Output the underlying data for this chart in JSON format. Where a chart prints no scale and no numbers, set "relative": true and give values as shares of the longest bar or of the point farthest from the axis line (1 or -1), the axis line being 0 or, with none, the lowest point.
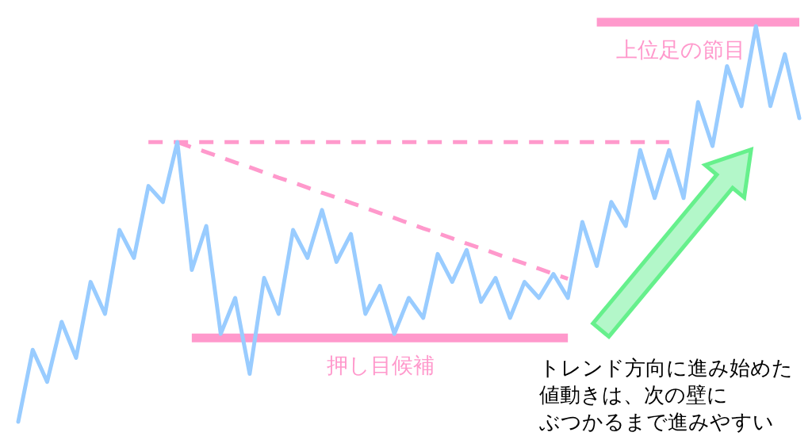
{
  "chart_data": {
    "type": "line",
    "relative": true,
    "categories": [
      null,
      null,
      null,
      null,
      null,
      null,
      null,
      null,
      null,
      null,
      null,
      null,
      null,
      null,
      null,
      null,
      null,
      null,
      null,
      null,
      null,
      null,
      null,
      null,
      null,
      null,
      null,
      null,
      null,
      null,
      null,
      null,
      null,
      null,
      null,
      null,
      null,
      null,
      null,
      null,
      null,
      null,
      null,
      null,
      null,
      null,
      null,
      null,
      null,
      null,
      null,
      null,
      null,
      null,
      null
    ],
    "series": [
      {
        "color": "#99ccff",
        "values": [
          0,
          0.18,
          0.1,
          0.25,
          0.16,
          0.35,
          0.27,
          0.48,
          0.41,
          0.59,
          0.55,
          0.7,
          0.38,
          0.49,
          0.22,
          0.31,
          0.12,
          0.36,
          0.27,
          0.48,
          0.41,
          0.53,
          0.4,
          0.47,
          0.27,
          0.34,
          0.22,
          0.31,
          0.26,
          0.42,
          0.35,
          0.43,
          0.3,
          0.36,
          0.26,
          0.35,
          0.31,
          0.37,
          0.31,
          0.5,
          0.39,
          0.55,
          0.49,
          0.68,
          0.56,
          0.68,
          0.56,
          0.8,
          0.69,
          0.89,
          0.79,
          0.99,
          0.79,
          0.92,
          0.76
        ]
      },
      {
        "type": "line",
        "color": "#ff99cc",
        "line_style": "dashed",
        "values": [
          null,
          null,
          null,
          null,
          null,
          null,
          null,
          null,
          null,
          0.7,
          0.7,
          0.7,
          0.7,
          0.7,
          0.7,
          0.7,
          0.7,
          0.7,
          0.7,
          0.7,
          0.7,
          0.7,
          0.7,
          0.7,
          0.7,
          0.7,
          0.7,
          0.7,
          0.7,
          0.7,
          0.7,
          0.7,
          0.7,
          0.7,
          0.7,
          0.7,
          0.7,
          0.7,
          0.7,
          0.7,
          0.7,
          0.7,
          0.7,
          0.7,
          0.7,
          0.7,
          null,
          null,
          null,
          null,
          null,
          null,
          null,
          null,
          null
        ]
      },
      {
        "type": "line",
        "color": "#ff99cc",
        "line_style": "dashed",
        "values": [
          null,
          null,
          null,
          null,
          null,
          null,
          null,
          null,
          null,
          null,
          null,
          0.7,
          0.687,
          0.675,
          0.662,
          0.649,
          0.637,
          0.624,
          0.611,
          0.599,
          0.586,
          0.573,
          0.561,
          0.548,
          0.535,
          0.522,
          0.51,
          0.497,
          0.484,
          0.472,
          0.459,
          0.446,
          0.434,
          0.421,
          0.408,
          0.396,
          0.383,
          0.37,
          0.358,
          null,
          null,
          null,
          null,
          null,
          null,
          null,
          null,
          null,
          null,
          null,
          null,
          null,
          null,
          null,
          null
        ]
      },
      {
        "type": "line",
        "name": "押し目候補",
        "color": "#ff99cc",
        "values": [
          null,
          null,
          null,
          null,
          null,
          null,
          null,
          null,
          null,
          null,
          null,
          null,
          0.21,
          0.21,
          0.21,
          0.21,
          0.21,
          0.21,
          0.21,
          0.21,
          0.21,
          0.21,
          0.21,
          0.21,
          0.21,
          0.21,
          0.21,
          0.21,
          0.21,
          0.21,
          0.21,
          0.21,
          0.21,
          0.21,
          0.21,
          0.21,
          0.21,
          0.21,
          0.21,
          null,
          null,
          null,
          null,
          null,
          null,
          null,
          null,
          null,
          null,
          null,
          null,
          null,
          null,
          null,
          null
        ]
      },
      {
        "type": "line",
        "name": "上位足の節目",
        "color": "#ff99cc",
        "values": [
          null,
          null,
          null,
          null,
          null,
          null,
          null,
          null,
          null,
          null,
          null,
          null,
          null,
          null,
          null,
          null,
          null,
          null,
          null,
          null,
          null,
          null,
          null,
          null,
          null,
          null,
          null,
          null,
          null,
          null,
          null,
          null,
          null,
          null,
          null,
          null,
          null,
          null,
          null,
          null,
          1,
          1,
          1,
          1,
          1,
          1,
          1,
          1,
          1,
          1,
          1,
          1,
          1,
          1,
          1
        ]
      }
    ],
    "annotations": [
      "トレンド方向に進み始めた値動きは、次の壁にぶつかるまで進みやすい"
    ]
  }
}
